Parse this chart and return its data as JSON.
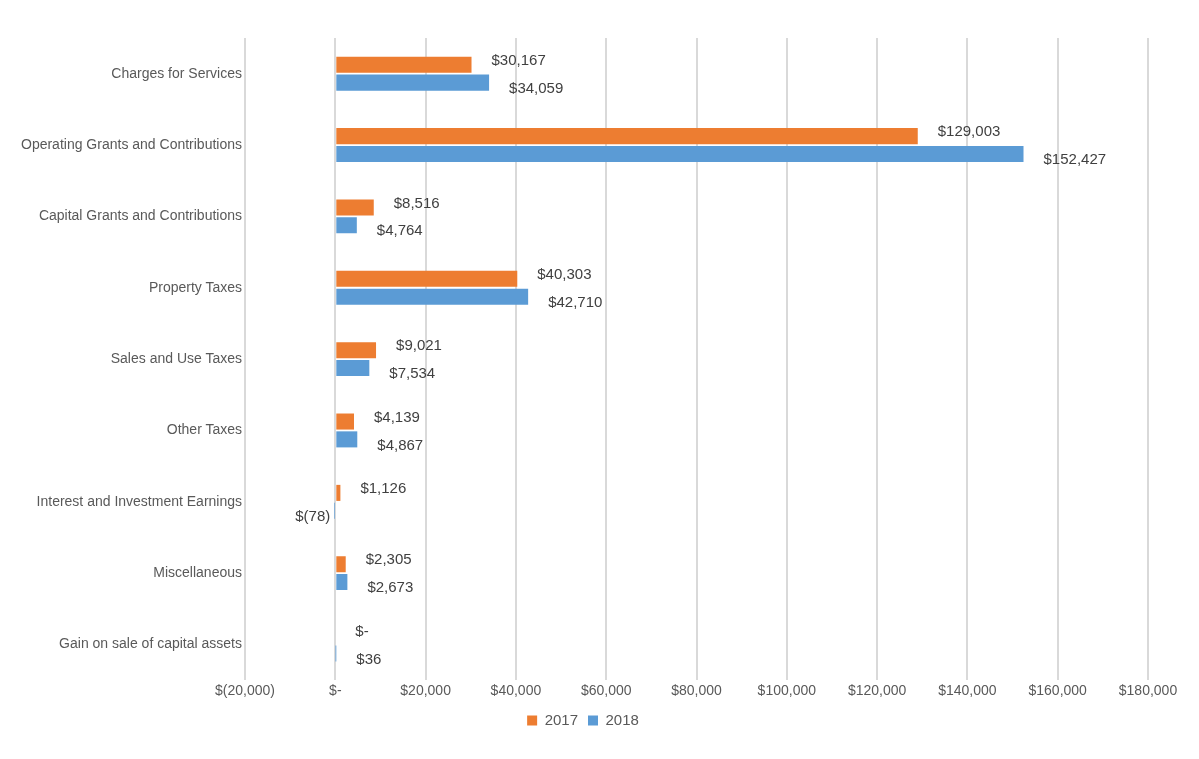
{
  "chart_data": {
    "type": "bar",
    "orientation": "horizontal",
    "categories": [
      "Charges for Services",
      "Operating Grants and Contributions",
      "Capital Grants and Contributions",
      "Property Taxes",
      "Sales and Use Taxes",
      "Other Taxes",
      "Interest and Investment Earnings",
      "Miscellaneous",
      "Gain on sale of capital assets"
    ],
    "series": [
      {
        "name": "2017",
        "color": "#ed7d31",
        "values": [
          30167,
          129003,
          8516,
          40303,
          9021,
          4139,
          1126,
          2305,
          0
        ],
        "value_labels": [
          "$30,167",
          "$129,003",
          "$8,516",
          "$40,303",
          "$9,021",
          "$4,139",
          "$1,126",
          "$2,305",
          "$-"
        ]
      },
      {
        "name": "2018",
        "color": "#5b9bd5",
        "values": [
          34059,
          152427,
          4764,
          42710,
          7534,
          4867,
          -78,
          2673,
          36
        ],
        "value_labels": [
          "$34,059",
          "$152,427",
          "$4,764",
          "$42,710",
          "$7,534",
          "$4,867",
          "$(78)",
          "$2,673",
          "$36"
        ]
      }
    ],
    "xlim": [
      -20000,
      180000
    ],
    "xticks": [
      {
        "value": -20000,
        "label": "$(20,000)"
      },
      {
        "value": 0,
        "label": "$-"
      },
      {
        "value": 20000,
        "label": "$20,000"
      },
      {
        "value": 40000,
        "label": "$40,000"
      },
      {
        "value": 60000,
        "label": "$60,000"
      },
      {
        "value": 80000,
        "label": "$80,000"
      },
      {
        "value": 100000,
        "label": "$100,000"
      },
      {
        "value": 120000,
        "label": "$120,000"
      },
      {
        "value": 140000,
        "label": "$140,000"
      },
      {
        "value": 160000,
        "label": "$160,000"
      },
      {
        "value": 180000,
        "label": "$180,000"
      }
    ],
    "grid": "x",
    "legend": "bottom"
  }
}
